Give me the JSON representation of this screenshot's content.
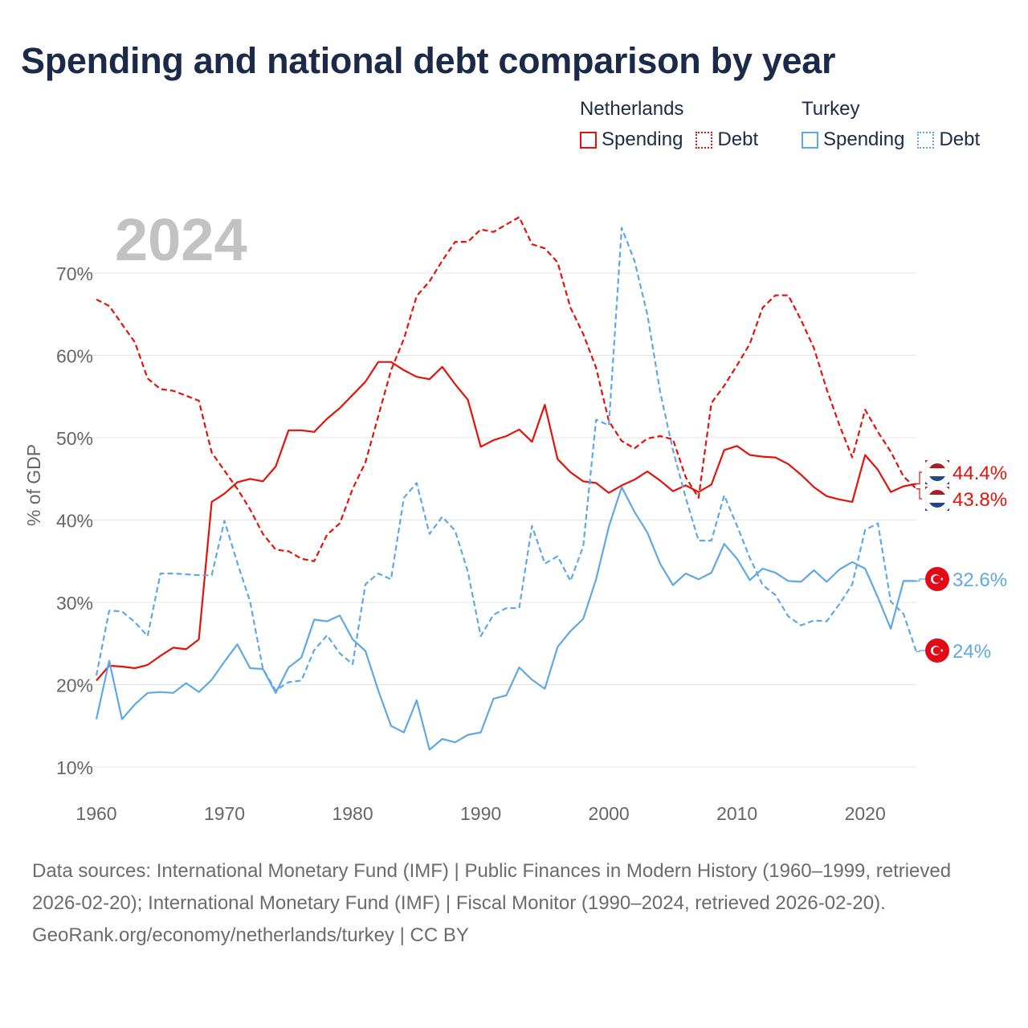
{
  "title": "Spending and national debt comparison by year",
  "legend": {
    "groups": [
      {
        "country": "Netherlands",
        "items": [
          {
            "label": "Spending",
            "style": "solid"
          },
          {
            "label": "Debt",
            "style": "dotted"
          }
        ],
        "color": "#e3120b"
      },
      {
        "country": "Turkey",
        "items": [
          {
            "label": "Spending",
            "style": "solid"
          },
          {
            "label": "Debt",
            "style": "dotted"
          }
        ],
        "color": "#5fa8e6"
      }
    ]
  },
  "chart_data": {
    "type": "line",
    "year_label": "2024",
    "ylabel": "% of GDP",
    "xlim": [
      1960,
      2024
    ],
    "ylim": [
      10,
      75
    ],
    "x_ticks": [
      1960,
      1970,
      1980,
      1990,
      2000,
      2010,
      2020
    ],
    "y_ticks": [
      10,
      20,
      30,
      40,
      50,
      60,
      70
    ],
    "y_tick_labels": [
      "10%",
      "20%",
      "30%",
      "40%",
      "50%",
      "60%",
      "70%"
    ],
    "x_start": 1960,
    "series": [
      {
        "name": "Netherlands Spending",
        "color": "#e3120b",
        "dash": false,
        "values": [
          20.5,
          22.3,
          22.2,
          22.0,
          22.4,
          23.5,
          24.5,
          24.3,
          25.5,
          42.2,
          43.2,
          44.6,
          45.0,
          44.7,
          46.5,
          50.9,
          50.9,
          50.7,
          52.3,
          53.6,
          55.2,
          56.8,
          59.2,
          59.2,
          58.2,
          57.4,
          57.1,
          58.6,
          56.5,
          54.6,
          48.9,
          49.7,
          50.2,
          51.0,
          49.5,
          54.0,
          47.4,
          45.8,
          44.7,
          44.5,
          43.3,
          44.2,
          44.9,
          45.9,
          44.8,
          43.5,
          44.2,
          43.4,
          44.3,
          48.5,
          49.0,
          47.9,
          47.7,
          47.6,
          46.8,
          45.5,
          44.0,
          42.9,
          42.5,
          42.2,
          47.9,
          46.1,
          43.4,
          44.1,
          44.4
        ]
      },
      {
        "name": "Netherlands Debt",
        "color": "#e3120b",
        "dash": true,
        "values": [
          66.8,
          66.0,
          63.8,
          61.6,
          57.2,
          55.9,
          55.7,
          55.1,
          54.5,
          48.2,
          46.0,
          43.8,
          41.3,
          38.3,
          36.4,
          36.2,
          35.3,
          35.0,
          38.2,
          39.6,
          43.8,
          47.0,
          52.6,
          58.2,
          62.0,
          67.2,
          69.0,
          71.5,
          73.8,
          73.8,
          75.3,
          75.0,
          75.9,
          76.8,
          73.5,
          73.0,
          71.3,
          65.8,
          62.6,
          58.5,
          52.0,
          49.6,
          48.7,
          49.9,
          50.2,
          49.8,
          45.2,
          42.7,
          54.2,
          56.3,
          58.8,
          61.4,
          65.8,
          67.3,
          67.3,
          64.3,
          60.9,
          55.9,
          51.5,
          47.6,
          53.4,
          50.7,
          48.3,
          45.3,
          43.8
        ]
      },
      {
        "name": "Turkey Spending",
        "color": "#5fa8e6",
        "dash": false,
        "values": [
          15.8,
          22.9,
          15.8,
          17.6,
          19.0,
          19.1,
          19.0,
          20.2,
          19.1,
          20.6,
          22.8,
          24.9,
          22.0,
          21.9,
          19.0,
          22.1,
          23.3,
          27.9,
          27.7,
          28.4,
          25.5,
          24.1,
          19.3,
          15.0,
          14.2,
          18.1,
          12.1,
          13.4,
          13.0,
          13.9,
          14.2,
          18.3,
          18.7,
          22.1,
          20.6,
          19.5,
          24.6,
          26.5,
          28.0,
          32.8,
          39.2,
          44.0,
          41.0,
          38.5,
          34.7,
          32.1,
          33.5,
          32.8,
          33.6,
          37.1,
          35.3,
          32.7,
          34.1,
          33.6,
          32.6,
          32.5,
          33.9,
          32.5,
          34.0,
          34.9,
          34.1,
          30.6,
          26.8,
          32.6,
          32.6
        ]
      },
      {
        "name": "Turkey Debt",
        "color": "#5fa8e6",
        "dash": true,
        "values": [
          21.1,
          29.0,
          28.9,
          27.6,
          25.9,
          33.5,
          33.5,
          33.4,
          33.3,
          33.3,
          39.9,
          34.8,
          30.1,
          21.9,
          19.3,
          20.3,
          20.5,
          24.2,
          26.0,
          23.8,
          22.5,
          32.2,
          33.5,
          32.8,
          42.7,
          44.5,
          38.3,
          40.4,
          38.7,
          33.7,
          25.9,
          28.5,
          29.3,
          29.3,
          39.3,
          34.7,
          35.6,
          32.6,
          36.8,
          52.2,
          51.5,
          75.5,
          71.5,
          65.0,
          55.6,
          48.5,
          42.7,
          37.5,
          37.5,
          43.0,
          39.3,
          35.4,
          32.1,
          30.9,
          28.3,
          27.2,
          27.8,
          27.7,
          29.8,
          32.2,
          38.8,
          39.6,
          30.1,
          28.6,
          24.0
        ]
      }
    ],
    "end_labels": [
      {
        "text": "44.4%",
        "value": 44.4,
        "flag": "netherlands-flag",
        "color": "#e3120b"
      },
      {
        "text": "43.8%",
        "value": 43.8,
        "flag": "netherlands-flag",
        "color": "#e3120b"
      },
      {
        "text": "32.6%",
        "value": 32.6,
        "flag": "turkey-flag",
        "color": "#5fa8e6"
      },
      {
        "text": "24%",
        "value": 24.0,
        "flag": "turkey-flag",
        "color": "#5fa8e6"
      }
    ]
  },
  "footer": {
    "sources": "Data sources: International Monetary Fund (IMF) | Public Finances in Modern History (1960–1999, retrieved 2026-02-20); International Monetary Fund (IMF) | Fiscal Monitor (1990–2024, retrieved 2026-02-20).",
    "credit": "GeoRank.org/economy/netherlands/turkey | CC BY"
  }
}
